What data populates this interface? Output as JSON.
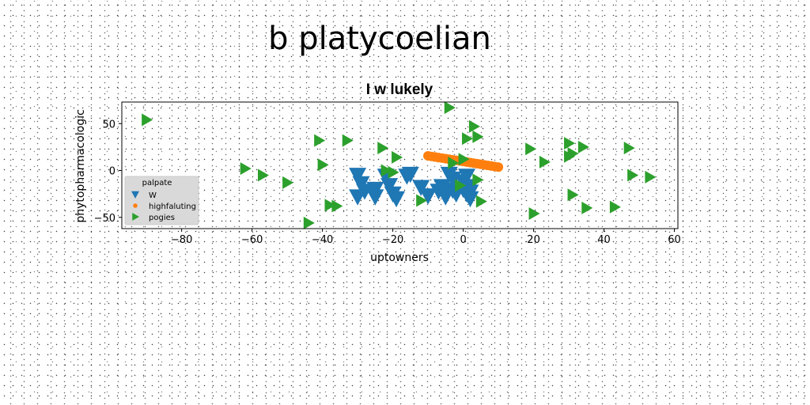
{
  "figure": {
    "suptitle": "b platycoelian"
  },
  "chart_data": {
    "type": "scatter",
    "title": "I w lukely",
    "xlabel": "uptowners",
    "ylabel": "phytopharmacologic",
    "xlim": [
      -97,
      61
    ],
    "ylim": [
      -62,
      73
    ],
    "xticks": [
      -80,
      -60,
      -40,
      -20,
      0,
      20,
      40,
      60
    ],
    "yticks": [
      -50,
      0,
      50
    ],
    "grid": false,
    "legend": {
      "title": "palpate",
      "placement": "lower-left"
    },
    "series": [
      {
        "name": "W",
        "marker": "triangle-down",
        "color": "#1f77b4",
        "points": [
          [
            -30,
            -5
          ],
          [
            -29,
            -14
          ],
          [
            -28,
            -22
          ],
          [
            -30,
            -28
          ],
          [
            -25,
            -20
          ],
          [
            -25,
            -28
          ],
          [
            -22,
            -6
          ],
          [
            -21,
            -16
          ],
          [
            -20,
            -25
          ],
          [
            -19,
            -30
          ],
          [
            -16,
            -6
          ],
          [
            -15,
            -4
          ],
          [
            -12,
            -18
          ],
          [
            -10,
            -27
          ],
          [
            -7,
            -22
          ],
          [
            -6,
            -17
          ],
          [
            -5,
            -25
          ],
          [
            -5,
            -28
          ],
          [
            -4,
            -4
          ],
          [
            -3,
            -9
          ],
          [
            -3,
            -21
          ],
          [
            -2,
            -25
          ],
          [
            0,
            -12
          ],
          [
            0,
            -20
          ],
          [
            1,
            -25
          ],
          [
            1,
            -6
          ],
          [
            2,
            -17
          ],
          [
            2,
            -23
          ],
          [
            2,
            -30
          ]
        ]
      },
      {
        "name": "highfaluting",
        "marker": "circle",
        "color": "#ff7f0e",
        "points": [
          [
            -10,
            15.6
          ],
          [
            -9,
            15.0
          ],
          [
            -8,
            14.4
          ],
          [
            -7,
            13.8
          ],
          [
            -6,
            13.2
          ],
          [
            -5,
            12.6
          ],
          [
            -4,
            12.0
          ],
          [
            -3,
            11.4
          ],
          [
            -2,
            10.8
          ],
          [
            -1,
            10.2
          ],
          [
            0,
            9.6
          ],
          [
            1,
            9.0
          ],
          [
            2,
            8.4
          ],
          [
            3,
            7.8
          ],
          [
            4,
            7.2
          ],
          [
            5,
            6.6
          ],
          [
            6,
            6.0
          ],
          [
            7,
            5.4
          ],
          [
            8,
            4.8
          ],
          [
            9,
            4.2
          ],
          [
            10,
            3.6
          ]
        ]
      },
      {
        "name": "pogies",
        "marker": "triangle-right",
        "color": "#2ca02c",
        "points": [
          [
            -90,
            54
          ],
          [
            -62,
            2
          ],
          [
            -57,
            -5
          ],
          [
            -50,
            -13
          ],
          [
            -44,
            -56
          ],
          [
            -41,
            32
          ],
          [
            -40,
            6
          ],
          [
            -38,
            -37
          ],
          [
            -36,
            -38
          ],
          [
            -33,
            32
          ],
          [
            -23,
            24
          ],
          [
            -22,
            0
          ],
          [
            -20,
            -2
          ],
          [
            -19,
            14
          ],
          [
            -12,
            -32
          ],
          [
            -4,
            67
          ],
          [
            -3,
            8
          ],
          [
            -1,
            -16
          ],
          [
            0,
            12
          ],
          [
            1,
            34
          ],
          [
            3,
            47
          ],
          [
            4,
            36
          ],
          [
            4,
            -10
          ],
          [
            5,
            -33
          ],
          [
            19,
            23
          ],
          [
            20,
            -46
          ],
          [
            23,
            9
          ],
          [
            30,
            29
          ],
          [
            30,
            15
          ],
          [
            31,
            18
          ],
          [
            31,
            -26
          ],
          [
            34,
            25
          ],
          [
            35,
            -40
          ],
          [
            43,
            -39
          ],
          [
            47,
            24
          ],
          [
            48,
            -5
          ],
          [
            53,
            -7
          ]
        ]
      }
    ]
  }
}
